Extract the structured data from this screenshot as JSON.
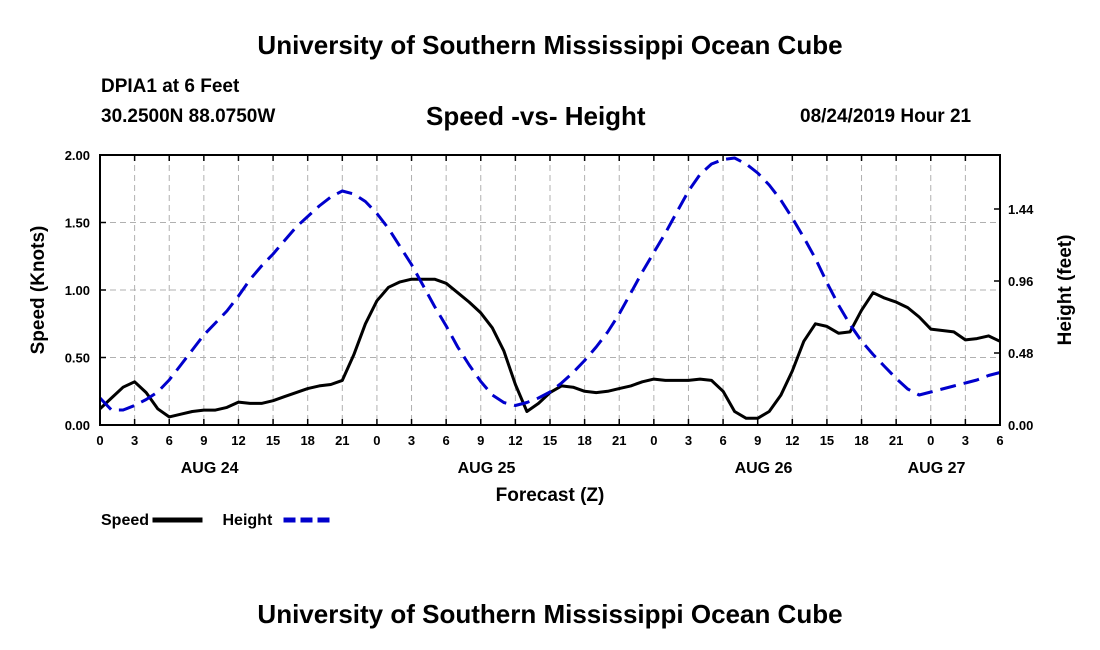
{
  "header": {
    "title": "University of Southern Mississippi Ocean Cube",
    "station": "DPIA1 at 6 Feet",
    "coords": "30.2500N 88.0750W",
    "valid_time": "08/24/2019 Hour 21"
  },
  "footer": {
    "title": "University of Southern Mississippi Ocean Cube"
  },
  "chart_data": {
    "type": "line",
    "title": "Speed -vs- Height",
    "xlabel": "Forecast (Z)",
    "ylabel": "Speed (Knots)",
    "y2label": "Height (feet)",
    "xlim": [
      0,
      78
    ],
    "ylim": [
      0,
      2.0
    ],
    "y2lim": [
      0,
      1.8
    ],
    "grid": true,
    "x_ticks": [
      0,
      3,
      6,
      9,
      12,
      15,
      18,
      21,
      24,
      27,
      30,
      33,
      36,
      39,
      42,
      45,
      48,
      51,
      54,
      57,
      60,
      63,
      66,
      69,
      72,
      75,
      78
    ],
    "x_tick_labels": [
      "0",
      "3",
      "6",
      "9",
      "12",
      "15",
      "18",
      "21",
      "0",
      "3",
      "6",
      "9",
      "12",
      "15",
      "18",
      "21",
      "0",
      "3",
      "6",
      "9",
      "12",
      "15",
      "18",
      "21",
      "0",
      "3",
      "6"
    ],
    "day_labels": [
      {
        "label": "AUG 24",
        "x": 9.5
      },
      {
        "label": "AUG 25",
        "x": 33.5
      },
      {
        "label": "AUG 26",
        "x": 57.5
      },
      {
        "label": "AUG 27",
        "x": 72.5
      }
    ],
    "y_ticks": [
      0.0,
      0.5,
      1.0,
      1.5,
      2.0
    ],
    "y_tick_labels": [
      "0.00",
      "0.50",
      "1.00",
      "1.50",
      "2.00"
    ],
    "y2_ticks": [
      0.0,
      0.48,
      0.96,
      1.44
    ],
    "y2_tick_labels": [
      "0.00",
      "0.48",
      "0.96",
      "1.44"
    ],
    "series": [
      {
        "name": "Speed",
        "axis": "left",
        "color": "#000000",
        "dash": "solid",
        "x": [
          0,
          1,
          2,
          3,
          4,
          5,
          6,
          7,
          8,
          9,
          10,
          11,
          12,
          13,
          14,
          15,
          16,
          17,
          18,
          19,
          20,
          21,
          22,
          23,
          24,
          25,
          26,
          27,
          28,
          29,
          30,
          31,
          32,
          33,
          34,
          35,
          36,
          37,
          38,
          39,
          40,
          41,
          42,
          43,
          44,
          45,
          46,
          47,
          48,
          49,
          50,
          51,
          52,
          53,
          54,
          55,
          56,
          57,
          58,
          59,
          60,
          61,
          62,
          63,
          64,
          65,
          66,
          67,
          68,
          69,
          70,
          71,
          72,
          73,
          74,
          75,
          76,
          77,
          78
        ],
        "values": [
          0.12,
          0.2,
          0.28,
          0.32,
          0.24,
          0.12,
          0.06,
          0.08,
          0.1,
          0.11,
          0.11,
          0.13,
          0.17,
          0.16,
          0.16,
          0.18,
          0.21,
          0.24,
          0.27,
          0.29,
          0.3,
          0.33,
          0.52,
          0.75,
          0.92,
          1.02,
          1.06,
          1.08,
          1.08,
          1.08,
          1.05,
          0.98,
          0.91,
          0.83,
          0.72,
          0.55,
          0.3,
          0.1,
          0.16,
          0.24,
          0.29,
          0.28,
          0.25,
          0.24,
          0.25,
          0.27,
          0.29,
          0.32,
          0.34,
          0.33,
          0.33,
          0.33,
          0.34,
          0.33,
          0.25,
          0.1,
          0.05,
          0.05,
          0.1,
          0.22,
          0.4,
          0.62,
          0.75,
          0.73,
          0.68,
          0.69,
          0.85,
          0.98,
          0.94,
          0.91,
          0.87,
          0.8,
          0.71,
          0.7,
          0.69,
          0.63,
          0.64,
          0.66,
          0.62
        ]
      },
      {
        "name": "Height",
        "axis": "right",
        "color": "#0000cc",
        "dash": "dashed",
        "x": [
          0,
          1,
          2,
          3,
          4,
          5,
          6,
          7,
          8,
          9,
          10,
          11,
          12,
          13,
          14,
          15,
          16,
          17,
          18,
          19,
          20,
          21,
          22,
          23,
          24,
          25,
          26,
          27,
          28,
          29,
          30,
          31,
          32,
          33,
          34,
          35,
          36,
          37,
          38,
          39,
          40,
          41,
          42,
          43,
          44,
          45,
          46,
          47,
          48,
          49,
          50,
          51,
          52,
          53,
          54,
          55,
          56,
          57,
          58,
          59,
          60,
          61,
          62,
          63,
          64,
          65,
          66,
          67,
          68,
          69,
          70,
          71,
          72,
          73,
          74,
          75,
          76,
          77,
          78
        ],
        "values": [
          0.18,
          0.1,
          0.1,
          0.13,
          0.17,
          0.22,
          0.3,
          0.4,
          0.5,
          0.6,
          0.68,
          0.76,
          0.86,
          0.97,
          1.06,
          1.14,
          1.23,
          1.32,
          1.39,
          1.46,
          1.52,
          1.56,
          1.54,
          1.49,
          1.41,
          1.31,
          1.19,
          1.07,
          0.93,
          0.79,
          0.66,
          0.52,
          0.4,
          0.29,
          0.2,
          0.15,
          0.13,
          0.15,
          0.18,
          0.22,
          0.28,
          0.35,
          0.43,
          0.52,
          0.62,
          0.74,
          0.88,
          1.02,
          1.15,
          1.28,
          1.42,
          1.56,
          1.67,
          1.74,
          1.77,
          1.78,
          1.74,
          1.68,
          1.6,
          1.5,
          1.38,
          1.25,
          1.11,
          0.95,
          0.8,
          0.67,
          0.56,
          0.47,
          0.39,
          0.31,
          0.24,
          0.2,
          0.22,
          0.24,
          0.26,
          0.28,
          0.3,
          0.33,
          0.35
        ]
      }
    ],
    "legend": {
      "position": "bottom-left",
      "entries": [
        {
          "label": "Speed",
          "color": "#000000",
          "dash": "solid"
        },
        {
          "label": "Height",
          "color": "#0000cc",
          "dash": "dashed"
        }
      ]
    }
  }
}
